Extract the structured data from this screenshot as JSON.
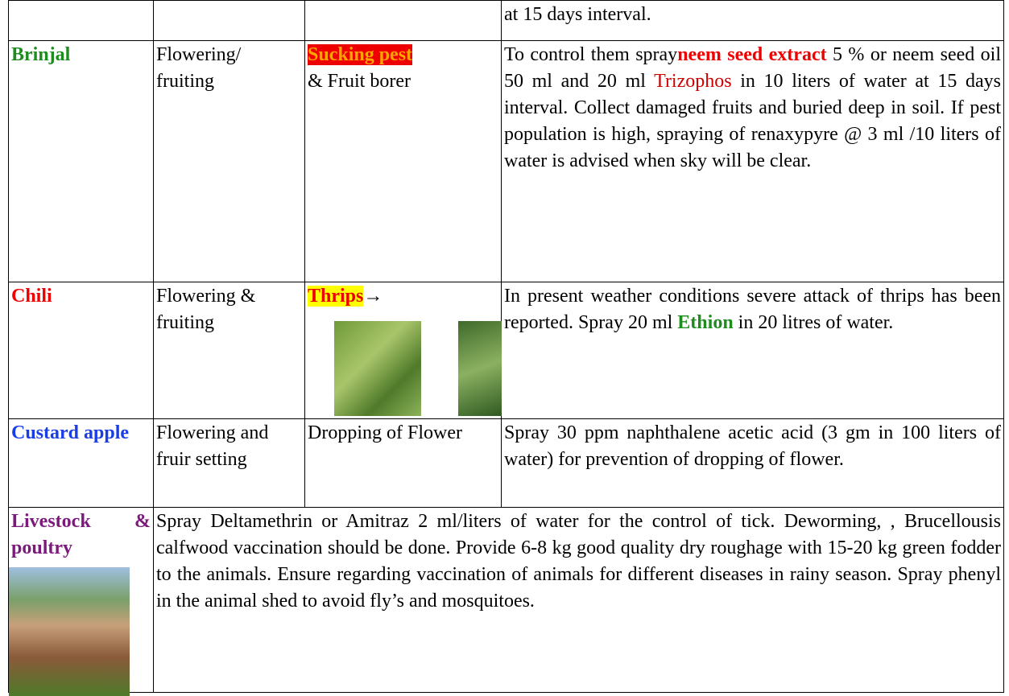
{
  "table": {
    "rows": [
      {
        "advice": [
          "at 15 days interval."
        ]
      },
      {
        "crop": "Brinjal",
        "stage": "Flowering/ fruiting",
        "pest": [
          "Sucking pest",
          "& Fruit borer"
        ],
        "advice": [
          "To control them spray",
          "neem seed extract",
          " 5 % or neem seed oil 50  ml and 20 ml ",
          "Trizophos",
          "  in 10 liters of water at 15 days interval. Collect damaged fruits and buried deep in soil. If pest population is high, spraying of renaxypyre  @ 3 ml /10 liters of water is advised when sky will be clear."
        ]
      },
      {
        "crop": "Chili",
        "stage": "Flowering & fruiting",
        "pest": [
          "Thrips",
          "→"
        ],
        "advice": [
          "In present weather conditions severe attack of thrips has been reported. Spray 20 ml ",
          "Ethion",
          " in 20 litres of water."
        ]
      },
      {
        "crop": "Custard apple",
        "stage": "Flowering and fruir setting",
        "pest": [
          "Dropping of Flower"
        ],
        "advice": [
          "Spray 30 ppm naphthalene acetic acid (3 gm in 100 liters of water)  for prevention of dropping of flower."
        ]
      },
      {
        "crop": "Livestock & poultry",
        "advice": [
          "Spray Deltamethrin or Amitraz 2 ml/liters of water for the control of tick.  Deworming, , Brucellousis calfwood vaccination should be done. Provide 6-8 kg good quality dry roughage with 15-20 kg green fodder to the animals. Ensure regarding vaccination of animals for different diseases in rainy season. Spray phenyl in the animal shed to avoid fly’s and mosquitoes."
        ]
      }
    ]
  }
}
